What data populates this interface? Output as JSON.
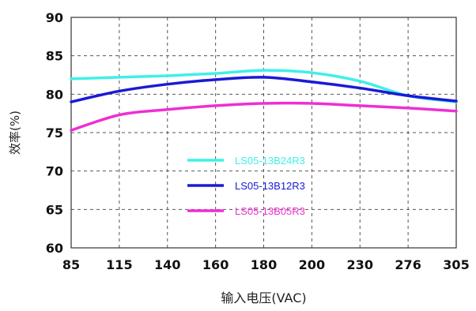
{
  "chart_data": {
    "type": "line",
    "xlabel": "输入电压(VAC)",
    "ylabel": "效率(%)",
    "categories": [
      "85",
      "115",
      "140",
      "160",
      "180",
      "200",
      "230",
      "276",
      "305"
    ],
    "y_ticks": [
      "60",
      "65",
      "70",
      "75",
      "80",
      "85",
      "90"
    ],
    "ylim": [
      60,
      90
    ],
    "grid": true,
    "grid_style": "dashed",
    "legend_position": "center-left inside plot",
    "series": [
      {
        "name": "LS05-13B24R3",
        "color": "#3ff0e8",
        "values": [
          82.0,
          82.2,
          82.4,
          82.7,
          83.1,
          82.8,
          81.7,
          79.8,
          79.0
        ]
      },
      {
        "name": "LS05-13B12R3",
        "color": "#1a1ad6",
        "values": [
          79.0,
          80.4,
          81.3,
          81.9,
          82.2,
          81.6,
          80.8,
          79.8,
          79.1
        ]
      },
      {
        "name": "LS05-13B05R3",
        "color": "#ee2fd2",
        "values": [
          75.3,
          77.3,
          78.0,
          78.5,
          78.8,
          78.8,
          78.5,
          78.2,
          77.8
        ]
      }
    ]
  }
}
